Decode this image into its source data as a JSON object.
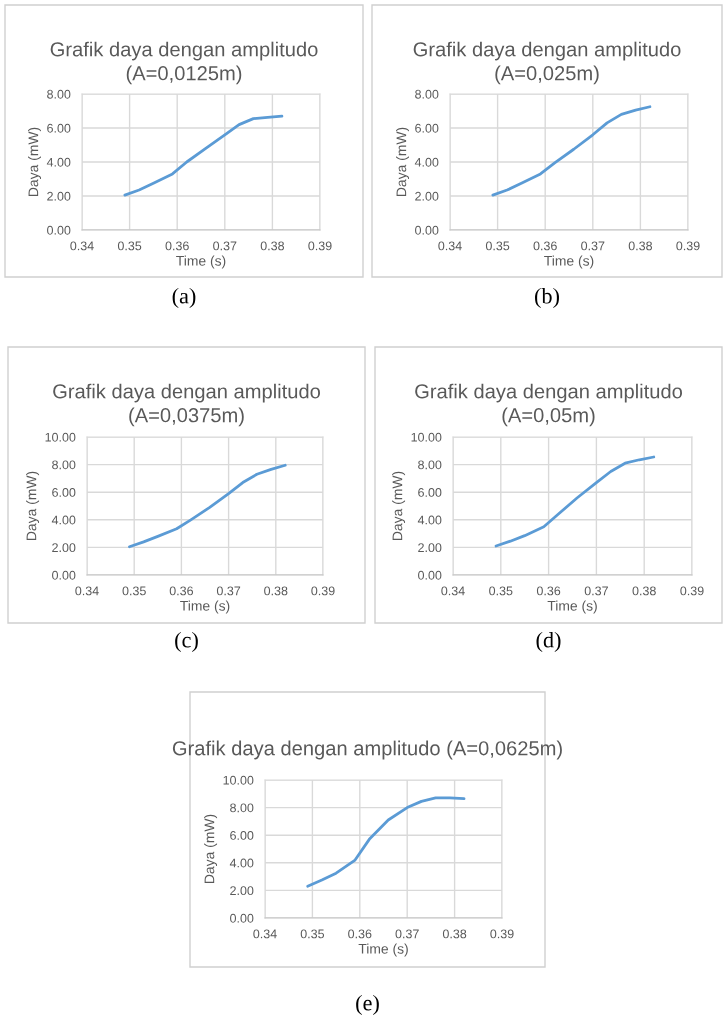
{
  "chart_data": [
    {
      "type": "line",
      "title": "Grafik daya dengan amplitudo (A=0,0125m)",
      "xlabel": "Time (s)",
      "ylabel": "Daya (mW)",
      "annotations": [
        "(a)"
      ],
      "x": [
        0.349,
        0.352,
        0.355,
        0.359,
        0.362,
        0.366,
        0.37,
        0.373,
        0.376,
        0.379,
        0.382
      ],
      "series": [
        {
          "color": "#5b9bd5",
          "values": [
            2.05,
            2.35,
            2.75,
            3.3,
            4.0,
            4.8,
            5.6,
            6.2,
            6.55,
            6.62,
            6.7
          ]
        }
      ],
      "xlim": [
        0.34,
        0.39
      ],
      "xticks": [
        {
          "value": 0.34,
          "label": "0.34"
        },
        {
          "value": 0.35,
          "label": "0.35"
        },
        {
          "value": 0.36,
          "label": "0.36"
        },
        {
          "value": 0.37,
          "label": "0.37"
        },
        {
          "value": 0.38,
          "label": "0.38"
        },
        {
          "value": 0.39,
          "label": "0.39"
        }
      ],
      "ylim": [
        0,
        8
      ],
      "yticks": [
        {
          "value": 0,
          "label": "0.00"
        },
        {
          "value": 2,
          "label": "2.00"
        },
        {
          "value": 4,
          "label": "4.00"
        },
        {
          "value": 6,
          "label": "6.00"
        },
        {
          "value": 8,
          "label": "8.00"
        }
      ],
      "grid": true,
      "legend": false
    },
    {
      "type": "line",
      "title": "Grafik daya dengan amplitudo (A=0,025m)",
      "xlabel": "Time (s)",
      "ylabel": "Daya (mW)",
      "annotations": [
        "(b)"
      ],
      "x": [
        0.349,
        0.352,
        0.355,
        0.359,
        0.362,
        0.366,
        0.37,
        0.373,
        0.376,
        0.379,
        0.382
      ],
      "series": [
        {
          "color": "#5b9bd5",
          "values": [
            2.05,
            2.35,
            2.75,
            3.3,
            3.95,
            4.75,
            5.6,
            6.3,
            6.8,
            7.05,
            7.25
          ]
        }
      ],
      "xlim": [
        0.34,
        0.39
      ],
      "xticks": [
        {
          "value": 0.34,
          "label": "0.34"
        },
        {
          "value": 0.35,
          "label": "0.35"
        },
        {
          "value": 0.36,
          "label": "0.36"
        },
        {
          "value": 0.37,
          "label": "0.37"
        },
        {
          "value": 0.38,
          "label": "0.38"
        },
        {
          "value": 0.39,
          "label": "0.39"
        }
      ],
      "ylim": [
        0,
        8
      ],
      "yticks": [
        {
          "value": 0,
          "label": "0.00"
        },
        {
          "value": 2,
          "label": "2.00"
        },
        {
          "value": 4,
          "label": "4.00"
        },
        {
          "value": 6,
          "label": "6.00"
        },
        {
          "value": 8,
          "label": "8.00"
        }
      ],
      "grid": true,
      "legend": false
    },
    {
      "type": "line",
      "title": "Grafik daya dengan amplitudo (A=0,0375m)",
      "xlabel": "Time (s)",
      "ylabel": "Daya (mW)",
      "annotations": [
        "(c)"
      ],
      "x": [
        0.349,
        0.352,
        0.355,
        0.359,
        0.362,
        0.366,
        0.37,
        0.373,
        0.376,
        0.379,
        0.382
      ],
      "series": [
        {
          "color": "#5b9bd5",
          "values": [
            2.05,
            2.4,
            2.8,
            3.35,
            4.0,
            4.9,
            5.9,
            6.7,
            7.3,
            7.65,
            7.95
          ]
        }
      ],
      "xlim": [
        0.34,
        0.39
      ],
      "xticks": [
        {
          "value": 0.34,
          "label": "0.34"
        },
        {
          "value": 0.35,
          "label": "0.35"
        },
        {
          "value": 0.36,
          "label": "0.36"
        },
        {
          "value": 0.37,
          "label": "0.37"
        },
        {
          "value": 0.38,
          "label": "0.38"
        },
        {
          "value": 0.39,
          "label": "0.39"
        }
      ],
      "ylim": [
        0,
        10
      ],
      "yticks": [
        {
          "value": 0,
          "label": "0.00"
        },
        {
          "value": 2,
          "label": "2.00"
        },
        {
          "value": 4,
          "label": "4.00"
        },
        {
          "value": 6,
          "label": "6.00"
        },
        {
          "value": 8,
          "label": "8.00"
        },
        {
          "value": 10,
          "label": "10.00"
        }
      ],
      "grid": true,
      "legend": false
    },
    {
      "type": "line",
      "title": "Grafik daya dengan amplitudo (A=0,05m)",
      "xlabel": "Time (s)",
      "ylabel": "Daya (mW)",
      "annotations": [
        "(d)"
      ],
      "x": [
        0.349,
        0.352,
        0.355,
        0.359,
        0.362,
        0.366,
        0.37,
        0.373,
        0.376,
        0.379,
        0.382
      ],
      "series": [
        {
          "color": "#5b9bd5",
          "values": [
            2.1,
            2.45,
            2.85,
            3.5,
            4.4,
            5.6,
            6.7,
            7.5,
            8.1,
            8.35,
            8.55
          ]
        }
      ],
      "xlim": [
        0.34,
        0.39
      ],
      "xticks": [
        {
          "value": 0.34,
          "label": "0.34"
        },
        {
          "value": 0.35,
          "label": "0.35"
        },
        {
          "value": 0.36,
          "label": "0.36"
        },
        {
          "value": 0.37,
          "label": "0.37"
        },
        {
          "value": 0.38,
          "label": "0.38"
        },
        {
          "value": 0.39,
          "label": "0.39"
        }
      ],
      "ylim": [
        0,
        10
      ],
      "yticks": [
        {
          "value": 0,
          "label": "0.00"
        },
        {
          "value": 2,
          "label": "2.00"
        },
        {
          "value": 4,
          "label": "4.00"
        },
        {
          "value": 6,
          "label": "6.00"
        },
        {
          "value": 8,
          "label": "8.00"
        },
        {
          "value": 10,
          "label": "10.00"
        }
      ],
      "grid": true,
      "legend": false
    },
    {
      "type": "line",
      "title": "Grafik daya dengan amplitudo (A=0,0625m)",
      "xlabel": "Time (s)",
      "ylabel": "Daya (mW)",
      "annotations": [
        "(e)"
      ],
      "x": [
        0.349,
        0.352,
        0.355,
        0.359,
        0.362,
        0.366,
        0.37,
        0.373,
        0.376,
        0.379,
        0.382
      ],
      "series": [
        {
          "color": "#5b9bd5",
          "values": [
            2.3,
            2.75,
            3.25,
            4.2,
            5.7,
            7.1,
            8.0,
            8.45,
            8.7,
            8.7,
            8.65
          ]
        }
      ],
      "xlim": [
        0.34,
        0.39
      ],
      "xticks": [
        {
          "value": 0.34,
          "label": "0.34"
        },
        {
          "value": 0.35,
          "label": "0.35"
        },
        {
          "value": 0.36,
          "label": "0.36"
        },
        {
          "value": 0.37,
          "label": "0.37"
        },
        {
          "value": 0.38,
          "label": "0.38"
        },
        {
          "value": 0.39,
          "label": "0.39"
        }
      ],
      "ylim": [
        0,
        10
      ],
      "yticks": [
        {
          "value": 0,
          "label": "0.00"
        },
        {
          "value": 2,
          "label": "2.00"
        },
        {
          "value": 4,
          "label": "4.00"
        },
        {
          "value": 6,
          "label": "6.00"
        },
        {
          "value": 8,
          "label": "8.00"
        },
        {
          "value": 10,
          "label": "10.00"
        }
      ],
      "grid": true,
      "legend": false
    }
  ]
}
